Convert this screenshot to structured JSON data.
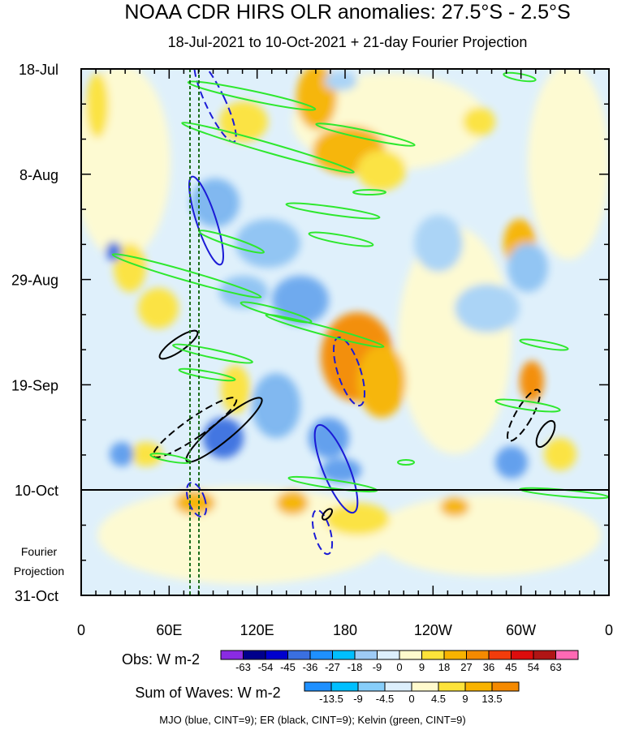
{
  "chart_data": {
    "type": "heatmap",
    "title": "NOAA CDR HIRS OLR anomalies: 27.5°S - 2.5°S",
    "subtitle": "18-Jul-2021 to 10-Oct-2021 + 21-day Fourier Projection",
    "y_ticks": [
      "18-Jul",
      "8-Aug",
      "29-Aug",
      "19-Sep",
      "10-Oct",
      "31-Oct"
    ],
    "x_ticks": [
      "0",
      "60E",
      "120E",
      "180",
      "120W",
      "60W",
      "0"
    ],
    "x_range_deg_east": [
      0,
      360
    ],
    "projection_label": [
      "Fourier",
      "Projection"
    ],
    "observed_end": "10-Oct",
    "obs_colorbar": {
      "title": "Obs: W m-2",
      "labels": [
        "-63",
        "-54",
        "-45",
        "-36",
        "-27",
        "-18",
        "-9",
        "0",
        "9",
        "18",
        "27",
        "36",
        "45",
        "54",
        "63"
      ],
      "colors": [
        "#8a2be2",
        "#00008b",
        "#0000cd",
        "#3a6fe0",
        "#1e90ff",
        "#00bfff",
        "#9ecbf5",
        "#ddeffc",
        "#fffacd",
        "#fde33a",
        "#f8b300",
        "#f58a00",
        "#f23c0b",
        "#dd0d0d",
        "#b01515",
        "#ff69b4"
      ]
    },
    "wave_colorbar": {
      "title": "Sum of Waves: W m-2",
      "labels": [
        "-13.5",
        "-9",
        "-4.5",
        "0",
        "4.5",
        "9",
        "13.5"
      ],
      "colors": [
        "#1e90ff",
        "#00bfff",
        "#87cefa",
        "#ddeffc",
        "#fffacd",
        "#fde33a",
        "#f8b300",
        "#f58a00"
      ]
    },
    "contour_note": "MJO (blue, CINT=9); ER (black, CINT=9); Kelvin (green, CINT=9)",
    "contours": {
      "mjo_color": "#1b1bd6",
      "er_color": "#000000",
      "kelvin_color": "#2ee82e"
    },
    "reference_longitudes_deg_east": [
      74,
      80
    ]
  }
}
